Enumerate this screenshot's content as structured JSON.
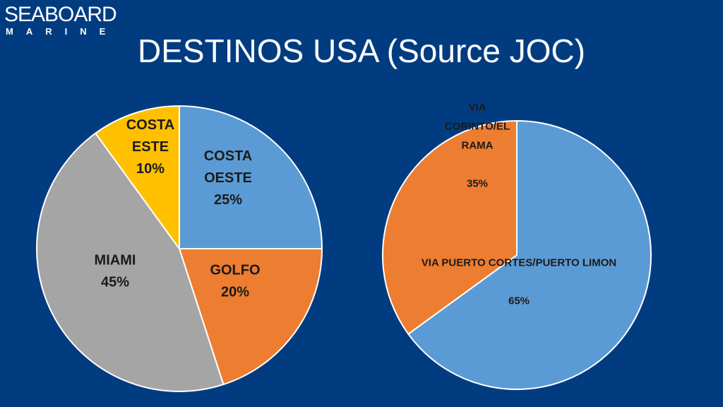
{
  "logo": {
    "word": "SEABOARD",
    "sub": "MARINE"
  },
  "title": "DESTINOS USA (Source JOC)",
  "chart_data": [
    {
      "type": "pie",
      "slices": [
        {
          "label_lines": [
            "COSTA",
            "OESTE",
            "25%"
          ],
          "value": 25,
          "color": "#5b9bd5"
        },
        {
          "label_lines": [
            "GOLFO",
            "20%"
          ],
          "value": 20,
          "color": "#ed7d31"
        },
        {
          "label_lines": [
            "MIAMI",
            "45%"
          ],
          "value": 45,
          "color": "#a5a5a5"
        },
        {
          "label_lines": [
            "COSTA",
            "ESTE",
            "10%"
          ],
          "value": 10,
          "color": "#ffc000"
        }
      ]
    },
    {
      "type": "pie",
      "slices": [
        {
          "label_lines": [
            "VIA PUERTO CORTES/PUERTO LIMON",
            "",
            "65%"
          ],
          "value": 65,
          "color": "#5b9bd5"
        },
        {
          "label_lines": [
            "VIA",
            "CORINTO/EL",
            "RAMA",
            "",
            "35%"
          ],
          "value": 35,
          "color": "#ed7d31"
        }
      ]
    }
  ]
}
